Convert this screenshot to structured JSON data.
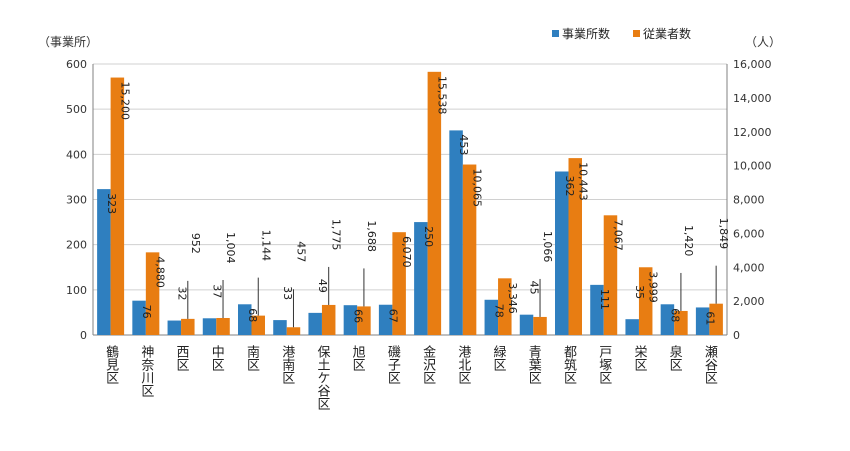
{
  "chart_data": {
    "type": "bar",
    "left_axis_label": "（事業所）",
    "right_axis_label": "（人）",
    "categories": [
      "鶴見区",
      "神奈川区",
      "西区",
      "中区",
      "南区",
      "港南区",
      "保土ケ谷区",
      "旭区",
      "磯子区",
      "金沢区",
      "港北区",
      "緑区",
      "青葉区",
      "都筑区",
      "戸塚区",
      "栄区",
      "泉区",
      "瀬谷区"
    ],
    "series": [
      {
        "name": "事業所数",
        "axis": "left",
        "color": "#2f7fbf",
        "values": [
          323,
          76,
          32,
          37,
          68,
          33,
          49,
          66,
          67,
          250,
          453,
          78,
          45,
          362,
          111,
          35,
          68,
          61
        ],
        "labels": [
          "323",
          "76",
          "32",
          "37",
          "68",
          "33",
          "49",
          "66",
          "67",
          "250",
          "453",
          "78",
          "45",
          "362",
          "111",
          "35",
          "68",
          "61"
        ]
      },
      {
        "name": "従業者数",
        "axis": "right",
        "color": "#e87d12",
        "values": [
          15200,
          4880,
          952,
          1004,
          1144,
          457,
          1775,
          1688,
          6070,
          15538,
          10065,
          3346,
          1066,
          10443,
          7067,
          3999,
          1420,
          1849
        ],
        "labels": [
          "15,200",
          "4,880",
          "952",
          "1,004",
          "1,144",
          "457",
          "1,775",
          "1,688",
          "6,070",
          "15,538",
          "10,065",
          "3,346",
          "1,066",
          "10,443",
          "7,067",
          "3,999",
          "1,420",
          "1,849"
        ]
      }
    ],
    "ylim_left": [
      0,
      600
    ],
    "yticks_left": [
      "0",
      "100",
      "200",
      "300",
      "400",
      "500",
      "600"
    ],
    "ylim_right": [
      0,
      16000
    ],
    "yticks_right": [
      "0",
      "2,000",
      "4,000",
      "6,000",
      "8,000",
      "10,000",
      "12,000",
      "14,000",
      "16,000"
    ],
    "grid": true,
    "legend_position": "top-right"
  }
}
